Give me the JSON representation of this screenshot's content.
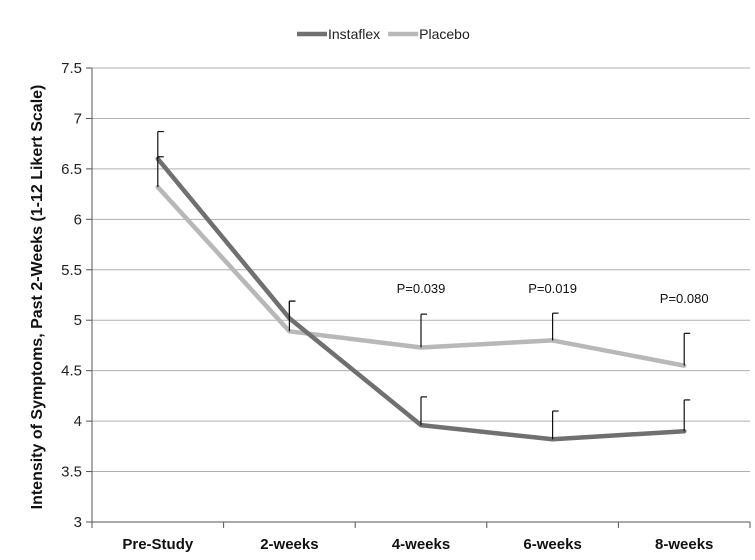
{
  "chart_data": {
    "type": "line",
    "categories": [
      "Pre-Study",
      "2-weeks",
      "4-weeks",
      "6-weeks",
      "8-weeks"
    ],
    "series": [
      {
        "name": "Instaflex",
        "values": [
          6.6,
          5.02,
          3.96,
          3.82,
          3.9
        ],
        "errors": [
          0.27,
          0.17,
          0.28,
          0.28,
          0.31
        ],
        "color": "#707070"
      },
      {
        "name": "Placebo",
        "values": [
          6.32,
          4.89,
          4.73,
          4.8,
          4.55
        ],
        "errors": [
          0.3,
          0.3,
          0.33,
          0.27,
          0.32
        ],
        "color": "#b8b8b8"
      }
    ],
    "annotations": [
      {
        "category": "4-weeks",
        "text": "P=0.039",
        "y": 5.27
      },
      {
        "category": "6-weeks",
        "text": "P=0.019",
        "y": 5.27
      },
      {
        "category": "8-weeks",
        "text": "P=0.080",
        "y": 5.17
      }
    ],
    "title": "",
    "xlabel": "",
    "ylabel": "Intensity of Symptoms, Past 2-Weeks (1-12 Likert Scale)",
    "ylim": [
      3,
      7.5
    ],
    "yticks": [
      3,
      3.5,
      4,
      4.5,
      5,
      5.5,
      6,
      6.5,
      7,
      7.5
    ],
    "grid": true,
    "legend_position": "top-center"
  }
}
